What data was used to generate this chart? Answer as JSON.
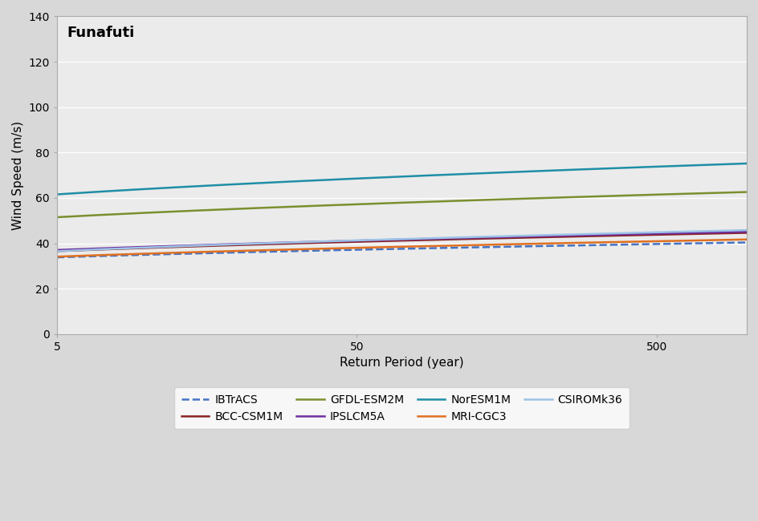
{
  "title": "Funafuti",
  "xlabel": "Return Period (year)",
  "ylabel": "Wind Speed (m/s)",
  "xlim": [
    5,
    1000
  ],
  "ylim": [
    0,
    140
  ],
  "yticks": [
    0,
    20,
    40,
    60,
    80,
    100,
    120,
    140
  ],
  "background_color": "#ebebeb",
  "fig_background": "#d8d8d8",
  "series": {
    "IBTrACS": {
      "color": "#4472c4",
      "linestyle": "--",
      "lw": 1.8,
      "params": [
        28.5,
        6.5,
        0.55
      ]
    },
    "BCC-CSM1M": {
      "color": "#8b2222",
      "linestyle": "-",
      "lw": 1.8,
      "params": [
        30.0,
        8.0,
        0.55
      ]
    },
    "GFDL-ESM2M": {
      "color": "#7a8f2e",
      "linestyle": "-",
      "lw": 1.8,
      "params": [
        42.5,
        11.0,
        0.55
      ]
    },
    "IPSLCM5A": {
      "color": "#7030a0",
      "linestyle": "-",
      "lw": 1.8,
      "params": [
        30.5,
        8.0,
        0.55
      ]
    },
    "NorESM1M": {
      "color": "#1f8ea6",
      "linestyle": "-",
      "lw": 1.8,
      "params": [
        50.5,
        13.5,
        0.55
      ]
    },
    "MRI-CGC3": {
      "color": "#e07020",
      "linestyle": "-",
      "lw": 1.8,
      "params": [
        28.0,
        7.5,
        0.55
      ]
    },
    "CSIROMk36": {
      "color": "#9dc3e6",
      "linestyle": "-",
      "lw": 1.8,
      "params": [
        29.0,
        9.2,
        0.55
      ]
    }
  },
  "legend_order": [
    "IBTrACS",
    "BCC-CSM1M",
    "GFDL-ESM2M",
    "IPSLCM5A",
    "NorESM1M",
    "MRI-CGC3",
    "CSIROMk36"
  ]
}
